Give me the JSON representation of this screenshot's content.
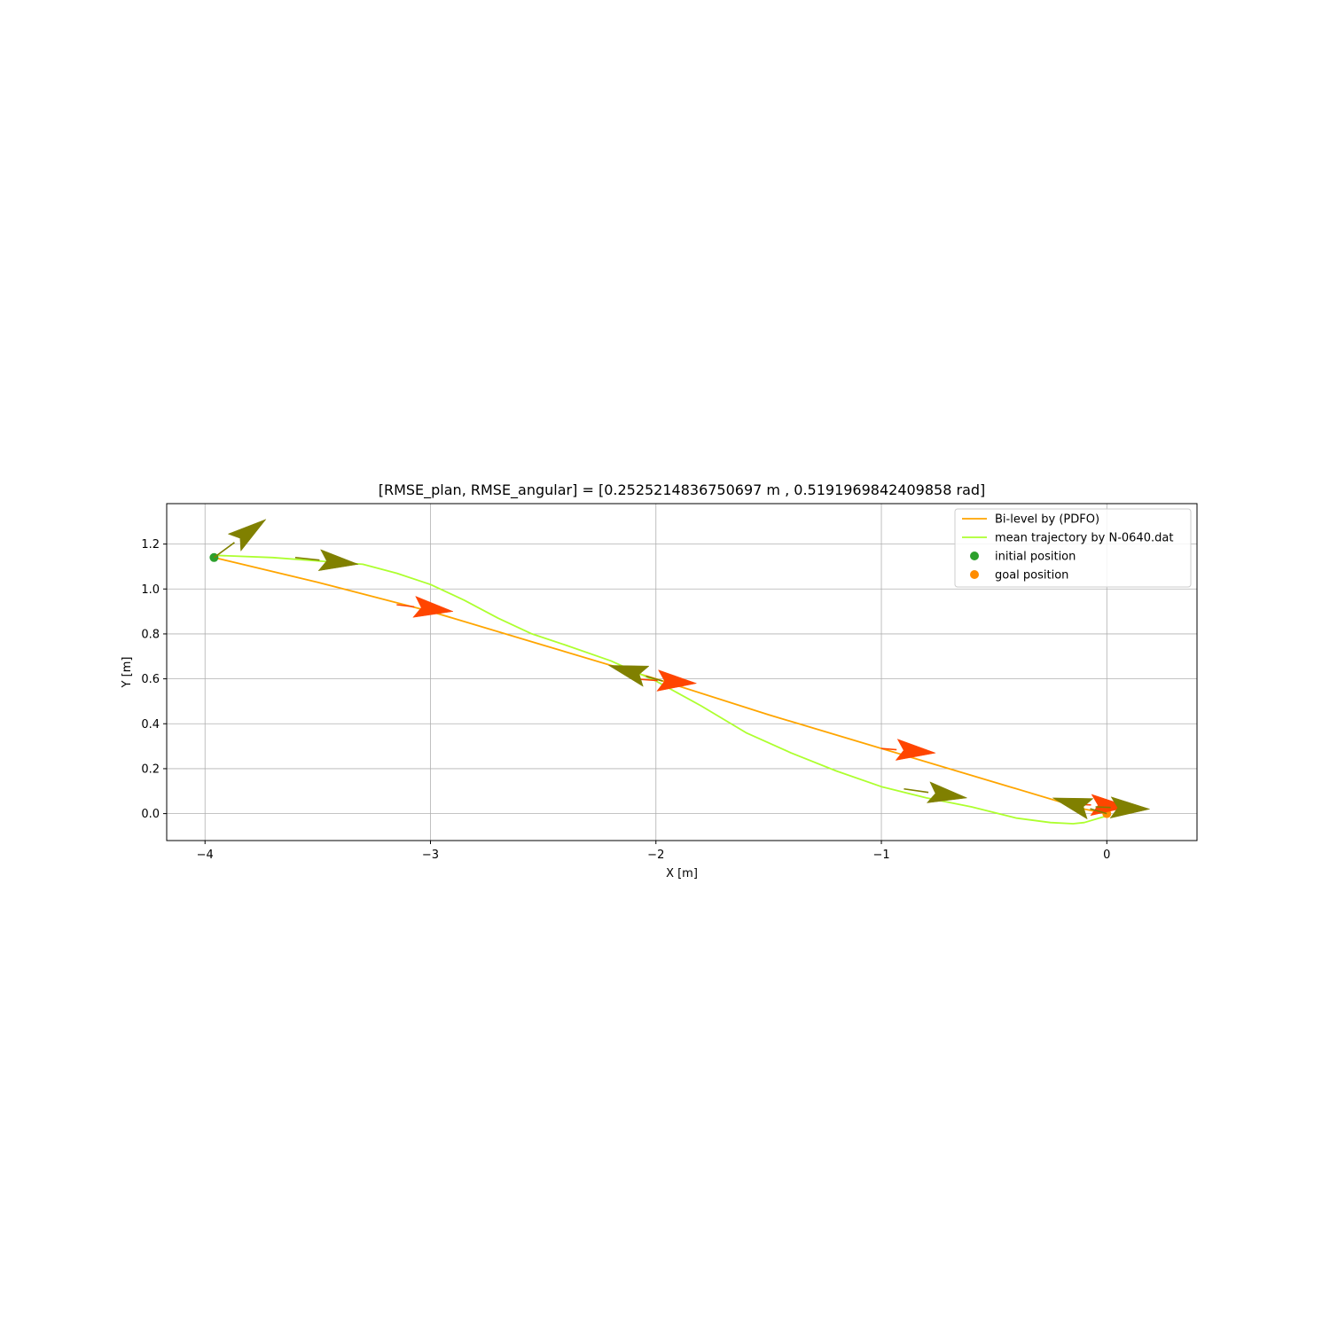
{
  "chart_data": {
    "type": "line",
    "title": "[RMSE_plan, RMSE_angular] = [0.2525214836750697 m , 0.5191969842409858 rad]",
    "xlabel": "X [m]",
    "ylabel": "Y [m]",
    "xlim": [
      -4.17,
      0.4
    ],
    "ylim": [
      -0.12,
      1.38
    ],
    "xticks": [
      -4,
      -3,
      -2,
      -1,
      0
    ],
    "xtick_labels": [
      "−4",
      "−3",
      "−2",
      "−1",
      "0"
    ],
    "yticks": [
      0.0,
      0.2,
      0.4,
      0.6,
      0.8,
      1.0,
      1.2
    ],
    "ytick_labels": [
      "0.0",
      "0.2",
      "0.4",
      "0.6",
      "0.8",
      "1.0",
      "1.2"
    ],
    "grid": true,
    "legend_position": "top-right",
    "series": [
      {
        "name": "Bi-level by (PDFO)",
        "kind": "line",
        "color": "#ffa500",
        "x": [
          -3.96,
          -3.5,
          -3.0,
          -2.5,
          -2.0,
          -1.5,
          -1.0,
          -0.5,
          -0.1,
          0.0
        ],
        "y": [
          1.14,
          1.03,
          0.9,
          0.75,
          0.6,
          0.44,
          0.29,
          0.14,
          0.02,
          0.0
        ]
      },
      {
        "name": "mean trajectory by N-0640.dat",
        "kind": "line",
        "color": "#adff2f",
        "x": [
          -3.96,
          -3.7,
          -3.5,
          -3.3,
          -3.15,
          -3.0,
          -2.85,
          -2.7,
          -2.55,
          -2.4,
          -2.2,
          -2.0,
          -1.8,
          -1.6,
          -1.4,
          -1.2,
          -1.0,
          -0.8,
          -0.6,
          -0.4,
          -0.25,
          -0.15,
          -0.1,
          0.0
        ],
        "y": [
          1.15,
          1.14,
          1.125,
          1.11,
          1.07,
          1.02,
          0.95,
          0.87,
          0.8,
          0.75,
          0.68,
          0.59,
          0.48,
          0.36,
          0.27,
          0.19,
          0.12,
          0.07,
          0.03,
          -0.02,
          -0.04,
          -0.045,
          -0.04,
          -0.01
        ]
      },
      {
        "name": "initial position",
        "kind": "marker",
        "color": "#2ca02c",
        "x": [
          -3.96
        ],
        "y": [
          1.14
        ]
      },
      {
        "name": "goal position",
        "kind": "marker",
        "color": "#ff8c00",
        "x": [
          0.0
        ],
        "y": [
          0.0
        ]
      }
    ],
    "orientation_arrows": [
      {
        "color": "#ff4500",
        "x": -3.15,
        "y": 0.93,
        "dx": 0.25,
        "dy": -0.03
      },
      {
        "color": "#ff4500",
        "x": -2.1,
        "y": 0.6,
        "dx": 0.28,
        "dy": -0.02
      },
      {
        "color": "#ff4500",
        "x": -1.0,
        "y": 0.29,
        "dx": 0.24,
        "dy": -0.02
      },
      {
        "color": "#ff4500",
        "x": -0.1,
        "y": 0.04,
        "dx": 0.2,
        "dy": -0.01
      },
      {
        "color": "#808000",
        "x": -3.96,
        "y": 1.14,
        "dx": 0.23,
        "dy": 0.17
      },
      {
        "color": "#808000",
        "x": -3.6,
        "y": 1.14,
        "dx": 0.28,
        "dy": -0.03
      },
      {
        "color": "#808000",
        "x": -1.97,
        "y": 0.59,
        "dx": -0.24,
        "dy": 0.07
      },
      {
        "color": "#808000",
        "x": -0.9,
        "y": 0.11,
        "dx": 0.28,
        "dy": -0.04
      },
      {
        "color": "#808000",
        "x": 0.0,
        "y": 0.0,
        "dx": -0.24,
        "dy": 0.07
      },
      {
        "color": "#808000",
        "x": -0.05,
        "y": 0.03,
        "dx": 0.24,
        "dy": -0.01
      }
    ]
  }
}
